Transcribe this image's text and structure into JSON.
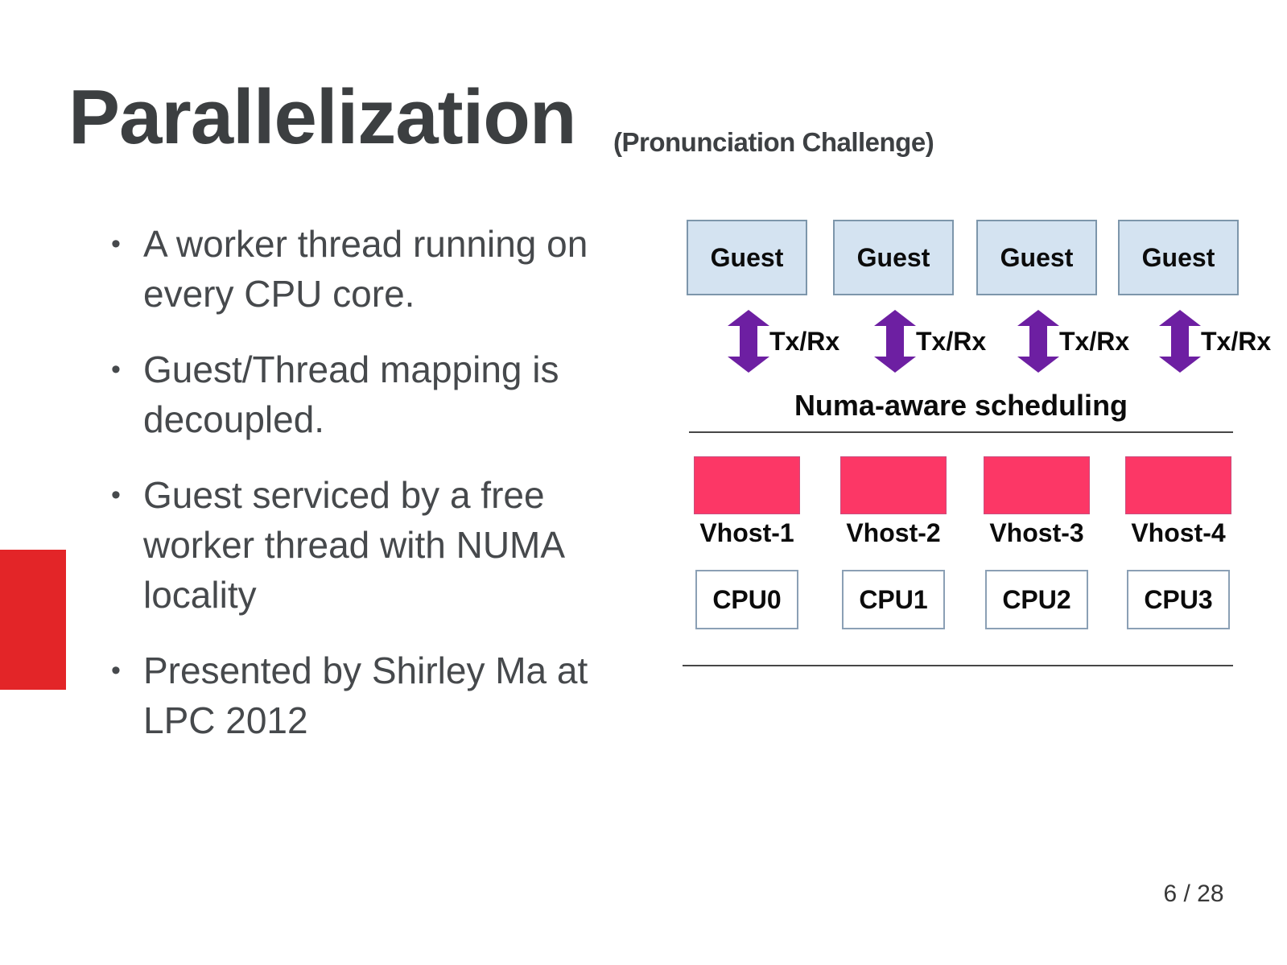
{
  "slide": {
    "title": "Parallelization",
    "subtitle": "(Pronunciation Challenge)",
    "page_number": "6 / 28",
    "accent_color": "#e32528",
    "text_color": "#46494c"
  },
  "bullets": [
    {
      "marker": "•",
      "text": "A worker thread running on every CPU core."
    },
    {
      "marker": "•",
      "text": "Guest/Thread mapping is decoupled."
    },
    {
      "marker": "•",
      "text": "Guest serviced by a free worker thread with NUMA locality"
    },
    {
      "marker": "•",
      "text": "Presented by Shirley Ma at LPC 2012"
    }
  ],
  "diagram": {
    "guests": [
      {
        "label": "Guest"
      },
      {
        "label": "Guest"
      },
      {
        "label": "Guest"
      },
      {
        "label": "Guest"
      }
    ],
    "txrx": [
      {
        "label": "Tx/Rx"
      },
      {
        "label": "Tx/Rx"
      },
      {
        "label": "Tx/Rx"
      },
      {
        "label": "Tx/Rx"
      }
    ],
    "scheduling_label": "Numa-aware scheduling",
    "vhosts": [
      {
        "label": "Vhost-1"
      },
      {
        "label": "Vhost-2"
      },
      {
        "label": "Vhost-3"
      },
      {
        "label": "Vhost-4"
      }
    ],
    "cpus": [
      {
        "label": "CPU0"
      },
      {
        "label": "CPU1"
      },
      {
        "label": "CPU2"
      },
      {
        "label": "CPU3"
      }
    ],
    "colors": {
      "guest_fill": "#d4e3f1",
      "guest_border": "#7d96ab",
      "arrow_purple": "#6d1fa2",
      "vhost_pink": "#fc3766",
      "cpu_border": "#8ba0b5",
      "separator_line": "#474747"
    }
  }
}
